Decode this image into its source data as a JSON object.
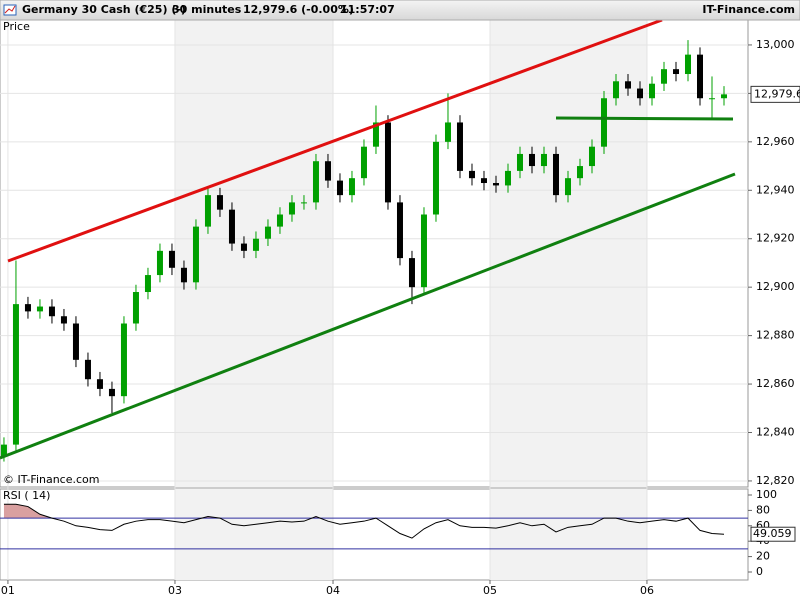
{
  "header": {
    "instrument": "Germany 30 Cash (€25) (-)",
    "interval": "30 minutes",
    "quote": "12,979.6 (-0.00%)",
    "time": "11:57:07",
    "brand": "IT-Finance.com"
  },
  "chart_data": [
    {
      "type": "candlestick",
      "label": "Price",
      "watermark": "© IT-Finance.com",
      "up_color": "#00a000",
      "down_color": "#000000",
      "xlim": [
        -0.33,
        62
      ],
      "ylim": [
        12817.5,
        13010.3
      ],
      "xticks": [
        {
          "value": 0.33,
          "label": "01"
        },
        {
          "value": 14.25,
          "label": "03"
        },
        {
          "value": 27.42,
          "label": "04"
        },
        {
          "value": 40.5,
          "label": "05"
        },
        {
          "value": 53.58,
          "label": "06"
        }
      ],
      "yticks": [
        {
          "value": 13000,
          "label": "13,000"
        },
        {
          "value": 12980,
          "label": "12,980"
        },
        {
          "value": 12960,
          "label": "12,960"
        },
        {
          "value": 12940,
          "label": "12,940"
        },
        {
          "value": 12920,
          "label": "12,920"
        },
        {
          "value": 12900,
          "label": "12,900"
        },
        {
          "value": 12880,
          "label": "12,880"
        },
        {
          "value": 12860,
          "label": "12,860"
        },
        {
          "value": 12840,
          "label": "12,840"
        },
        {
          "value": 12820,
          "label": "12,820"
        }
      ],
      "last_price": {
        "value": 12979.6,
        "label": "12,979.6"
      },
      "open": [
        12830,
        12835,
        12893,
        12890,
        12892,
        12888,
        12885,
        12870,
        12862,
        12858,
        12855,
        12885,
        12898,
        12905,
        12915,
        12908,
        12902,
        12925,
        12938,
        12932,
        12918,
        12915,
        12920,
        12925,
        12930,
        12935,
        12935,
        12952,
        12944,
        12938,
        12945,
        12958,
        12968,
        12935,
        12912,
        12900,
        12930,
        12960,
        12968,
        12948,
        12945,
        12943,
        12942,
        12948,
        12955,
        12950,
        12955,
        12938,
        12945,
        12950,
        12958,
        12978,
        12985,
        12982,
        12978,
        12984,
        12990,
        12988,
        12996,
        12978,
        12978
      ],
      "high": [
        12838,
        12911,
        12896,
        12895,
        12895,
        12891,
        12888,
        12873,
        12865,
        12861,
        12888,
        12901,
        12908,
        12918,
        12918,
        12911,
        12928,
        12941,
        12941,
        12935,
        12921,
        12923,
        12928,
        12933,
        12938,
        12938,
        12955,
        12955,
        12947,
        12948,
        12961,
        12975,
        12971,
        12938,
        12915,
        12933,
        12963,
        12980,
        12971,
        12951,
        12948,
        12946,
        12951,
        12958,
        12958,
        12958,
        12958,
        12948,
        12953,
        12961,
        12981,
        12988,
        12988,
        12985,
        12987,
        12993,
        12993,
        13002,
        12999,
        12987,
        12983
      ],
      "low": [
        12828,
        12832,
        12887,
        12887,
        12885,
        12882,
        12867,
        12859,
        12855,
        12848,
        12852,
        12882,
        12895,
        12902,
        12905,
        12899,
        12899,
        12922,
        12929,
        12915,
        12912,
        12912,
        12917,
        12922,
        12927,
        12932,
        12932,
        12941,
        12935,
        12935,
        12942,
        12955,
        12932,
        12909,
        12893,
        12897,
        12927,
        12957,
        12945,
        12942,
        12940,
        12939,
        12939,
        12945,
        12947,
        12947,
        12935,
        12935,
        12942,
        12947,
        12955,
        12975,
        12979,
        12975,
        12975,
        12981,
        12985,
        12985,
        12975,
        12970,
        12975
      ],
      "close": [
        12835,
        12893,
        12890,
        12892,
        12888,
        12885,
        12870,
        12862,
        12858,
        12855,
        12885,
        12898,
        12905,
        12915,
        12908,
        12902,
        12925,
        12938,
        12932,
        12918,
        12915,
        12920,
        12925,
        12930,
        12935,
        12935,
        12952,
        12944,
        12938,
        12945,
        12958,
        12968,
        12935,
        12912,
        12900,
        12930,
        12960,
        12968,
        12948,
        12945,
        12943,
        12942,
        12948,
        12955,
        12950,
        12955,
        12938,
        12945,
        12950,
        12958,
        12978,
        12985,
        12982,
        12978,
        12984,
        12990,
        12988,
        12996,
        12978,
        12978,
        12979.6
      ]
    },
    {
      "type": "line",
      "title": "RSI ( 14)",
      "color": "#000000",
      "level_color": "#3030a0",
      "overbought_color": "#d9a0a0",
      "ylim": [
        -10.4,
        107.8
      ],
      "yticks": [
        100,
        80,
        60,
        40,
        20,
        0
      ],
      "levels": [
        70,
        30
      ],
      "last_value": {
        "value": 49.059,
        "label": "49.059"
      },
      "values": [
        88,
        88,
        85,
        75,
        70,
        66,
        60,
        58,
        55,
        54,
        62,
        66,
        68,
        68,
        66,
        64,
        68,
        72,
        70,
        62,
        60,
        62,
        64,
        66,
        65,
        66,
        72,
        66,
        62,
        64,
        66,
        70,
        60,
        50,
        44,
        56,
        64,
        68,
        60,
        58,
        58,
        57,
        60,
        64,
        60,
        62,
        52,
        58,
        60,
        62,
        70,
        70,
        66,
        64,
        66,
        68,
        66,
        70,
        54,
        50,
        49.059
      ]
    }
  ]
}
